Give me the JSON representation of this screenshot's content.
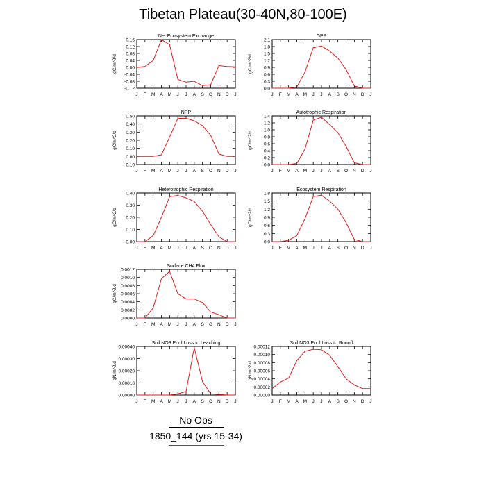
{
  "title": "Tibetan Plateau(30-40N,80-100E)",
  "legend": {
    "obs_label": "No Obs",
    "case_label": "1850_144 (yrs 15-34)",
    "case_color": "#e41a1c",
    "obs_color": "#000000"
  },
  "chart_data": [
    {
      "type": "line",
      "title": "Net Ecosystem Exchange",
      "ylabel": "gC/m^2/d",
      "x": [
        "J",
        "F",
        "M",
        "A",
        "M",
        "J",
        "J",
        "A",
        "S",
        "O",
        "N",
        "D",
        "J"
      ],
      "series": [
        {
          "values": [
            0.0,
            0.005,
            0.04,
            0.16,
            0.13,
            -0.07,
            -0.085,
            -0.08,
            -0.105,
            -0.1,
            0.01,
            0.005,
            0.003
          ]
        }
      ],
      "yticks": [
        "0.16",
        "0.12",
        "0.08",
        "0.04",
        "0.00",
        "-0.04",
        "-0.08",
        "-0.12"
      ],
      "ylim": [
        -0.12,
        0.16
      ]
    },
    {
      "type": "line",
      "title": "GPP",
      "ylabel": "gC/m^2/d",
      "x": [
        "J",
        "F",
        "M",
        "A",
        "M",
        "J",
        "J",
        "A",
        "S",
        "O",
        "N",
        "D",
        "J"
      ],
      "series": [
        {
          "values": [
            0.0,
            0.0,
            0.0,
            0.05,
            0.7,
            1.75,
            1.82,
            1.6,
            1.3,
            0.8,
            0.1,
            0.0,
            0.0
          ]
        }
      ],
      "yticks": [
        "2.1",
        "1.8",
        "1.5",
        "1.2",
        "0.9",
        "0.6",
        "0.3",
        "0.0"
      ],
      "ylim": [
        0.0,
        2.1
      ]
    },
    {
      "type": "line",
      "title": "NPP",
      "ylabel": "gC/m^2/d",
      "x": [
        "J",
        "F",
        "M",
        "A",
        "M",
        "J",
        "J",
        "A",
        "S",
        "O",
        "N",
        "D",
        "J"
      ],
      "series": [
        {
          "values": [
            0.0,
            0.0,
            0.0,
            0.02,
            0.24,
            0.47,
            0.47,
            0.44,
            0.38,
            0.26,
            0.03,
            0.0,
            0.0
          ]
        }
      ],
      "yticks": [
        "0.50",
        "0.40",
        "0.30",
        "0.20",
        "0.10",
        "0.00",
        "-0.10"
      ],
      "ylim": [
        -0.1,
        0.5
      ]
    },
    {
      "type": "line",
      "title": "Autotrophic Respiration",
      "ylabel": "gC/m^2/d",
      "x": [
        "J",
        "F",
        "M",
        "A",
        "M",
        "J",
        "J",
        "A",
        "S",
        "O",
        "N",
        "D",
        "J"
      ],
      "series": [
        {
          "values": [
            0.0,
            0.0,
            0.0,
            0.03,
            0.45,
            1.28,
            1.36,
            1.15,
            0.92,
            0.52,
            0.05,
            0.0,
            0.0
          ]
        }
      ],
      "yticks": [
        "1.4",
        "1.2",
        "1.0",
        "0.8",
        "0.6",
        "0.4",
        "0.2",
        "0.0"
      ],
      "ylim": [
        0.0,
        1.4
      ]
    },
    {
      "type": "line",
      "title": "Heterotrophic Respiration",
      "ylabel": "gC/m^2/d",
      "x": [
        "J",
        "F",
        "M",
        "A",
        "M",
        "J",
        "J",
        "A",
        "S",
        "O",
        "N",
        "D",
        "J"
      ],
      "series": [
        {
          "values": [
            0.0,
            0.0,
            0.05,
            0.2,
            0.37,
            0.38,
            0.36,
            0.33,
            0.25,
            0.14,
            0.04,
            0.0,
            0.0
          ]
        }
      ],
      "yticks": [
        "0.40",
        "0.30",
        "0.20",
        "0.10",
        "0.00"
      ],
      "ylim": [
        0.0,
        0.4
      ]
    },
    {
      "type": "line",
      "title": "Ecosystem Respiration",
      "ylabel": "gC/m^2/d",
      "x": [
        "J",
        "F",
        "M",
        "A",
        "M",
        "J",
        "J",
        "A",
        "S",
        "O",
        "N",
        "D",
        "J"
      ],
      "series": [
        {
          "values": [
            0.0,
            0.0,
            0.05,
            0.22,
            0.85,
            1.67,
            1.72,
            1.5,
            1.2,
            0.7,
            0.08,
            0.0,
            0.0
          ]
        }
      ],
      "yticks": [
        "1.8",
        "1.5",
        "1.2",
        "0.9",
        "0.6",
        "0.3",
        "0.0"
      ],
      "ylim": [
        0.0,
        1.8
      ]
    },
    {
      "type": "line",
      "title": "Surface CH4 Flux",
      "ylabel": "gC/m^2/d",
      "x": [
        "J",
        "F",
        "M",
        "A",
        "M",
        "J",
        "J",
        "A",
        "S",
        "O",
        "N",
        "D",
        "J"
      ],
      "series": [
        {
          "values": [
            0.0,
            0.0,
            0.00025,
            0.00097,
            0.00115,
            0.0006,
            0.00047,
            0.00047,
            0.00038,
            0.00015,
            8e-05,
            0.0,
            0.0
          ]
        }
      ],
      "yticks": [
        "0.0012",
        "0.0010",
        "0.0008",
        "0.0006",
        "0.0004",
        "0.0002",
        "0.0000"
      ],
      "ylim": [
        0.0,
        0.0012
      ]
    },
    {
      "type": "line",
      "title": "Soil NO3 Pool Loss to Leaching",
      "ylabel": "gN/m^2/d",
      "x": [
        "J",
        "F",
        "M",
        "A",
        "M",
        "J",
        "J",
        "A",
        "S",
        "O",
        "N",
        "D",
        "J"
      ],
      "series": [
        {
          "values": [
            0.0,
            0.0,
            0.0,
            0.0,
            0.0,
            1e-05,
            3e-05,
            0.00039,
            0.00011,
            1e-05,
            5e-06,
            0.0,
            0.0
          ]
        }
      ],
      "yticks": [
        "0.00040",
        "0.00030",
        "0.00020",
        "0.00010",
        "0.00000"
      ],
      "ylim": [
        0.0,
        0.0004
      ]
    },
    {
      "type": "line",
      "title": "Soil NO3 Pool Loss to Runoff",
      "ylabel": "gN/m^2/d",
      "x": [
        "J",
        "F",
        "M",
        "A",
        "M",
        "J",
        "J",
        "A",
        "S",
        "O",
        "N",
        "D",
        "J"
      ],
      "series": [
        {
          "values": [
            1.6e-05,
            3.2e-05,
            4.2e-05,
            8.5e-05,
            0.000108,
            0.000113,
            0.000112,
            9.8e-05,
            7e-05,
            4e-05,
            2.5e-05,
            1.6e-05,
            1.6e-05
          ]
        }
      ],
      "yticks": [
        "0.00012",
        "0.00010",
        "0.00008",
        "0.00006",
        "0.00004",
        "0.00002",
        "0.00000"
      ],
      "ylim": [
        0.0,
        0.00012
      ]
    }
  ]
}
